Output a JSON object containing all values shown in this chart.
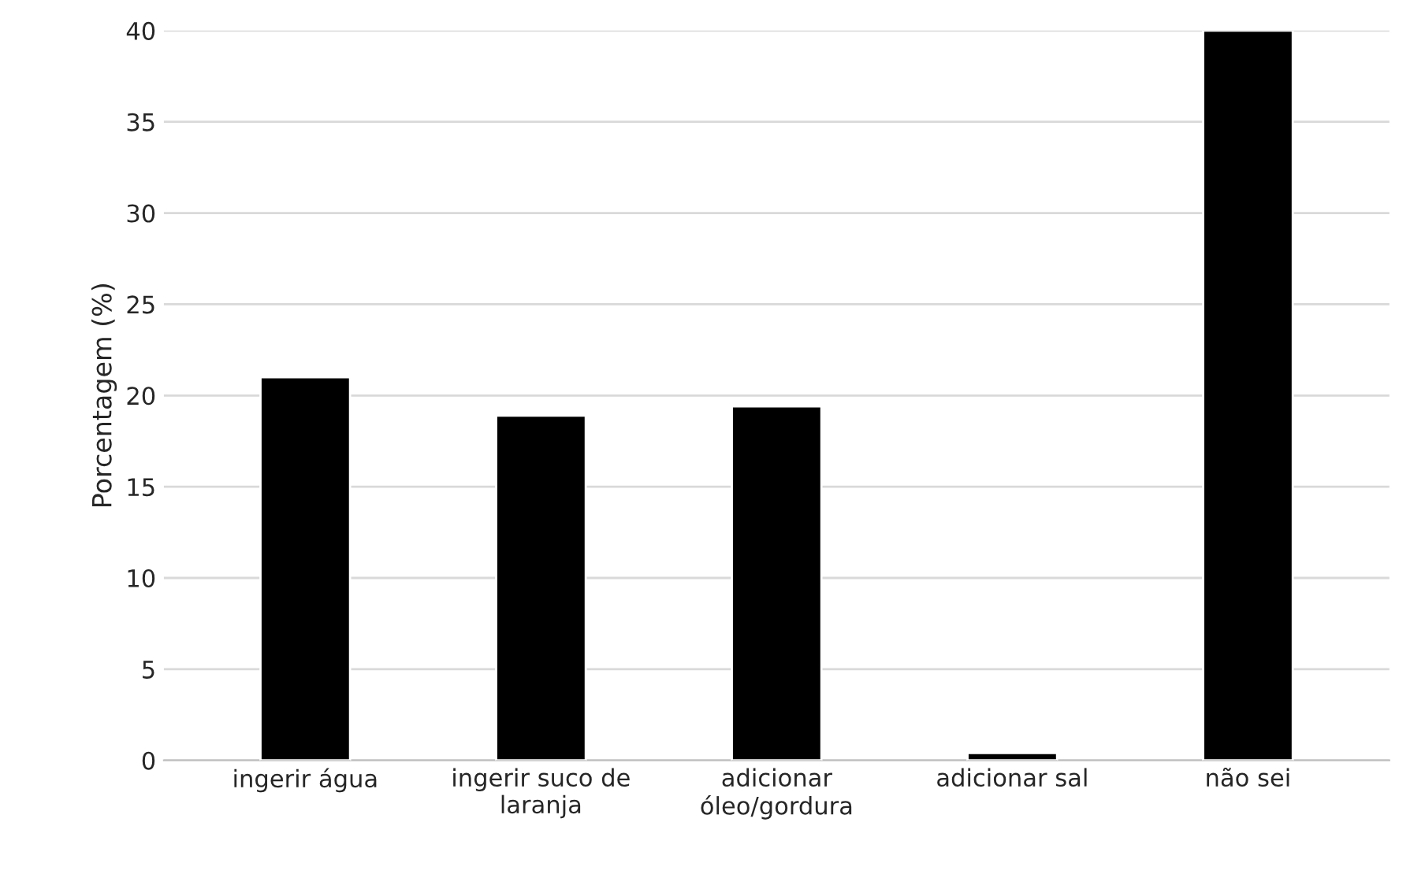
{
  "chart_data": {
    "type": "bar",
    "ylabel": "Porcentagem (%)",
    "categories": [
      "ingerir água",
      "ingerir suco de\nlaranja",
      "adicionar\nóleo/gordura",
      "adicionar sal",
      "não sei"
    ],
    "values": [
      21,
      18.9,
      19.4,
      0.4,
      40
    ],
    "color": "#000000",
    "ylim": [
      0,
      40
    ],
    "yticks": [
      0,
      5,
      10,
      15,
      20,
      25,
      30,
      35,
      40
    ],
    "grid": "y"
  }
}
